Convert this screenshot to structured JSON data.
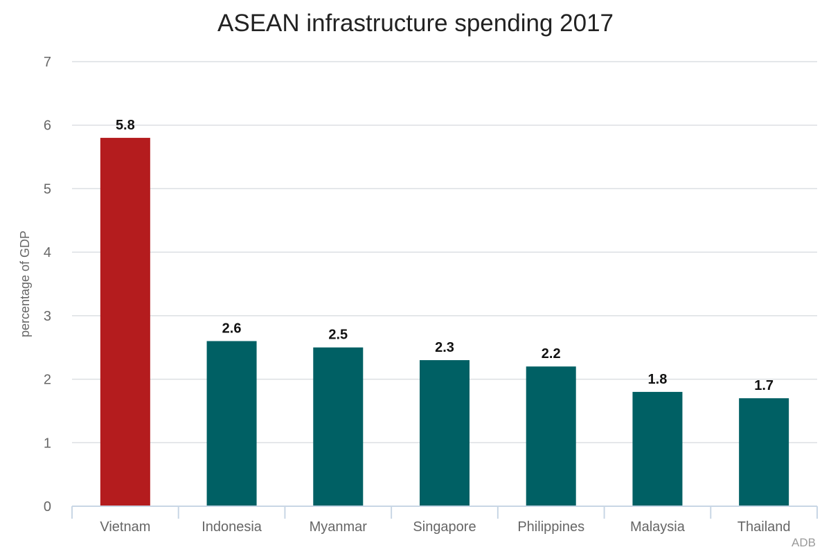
{
  "chart_data": {
    "type": "bar",
    "title": "ASEAN infrastructure spending 2017",
    "xlabel": "",
    "ylabel": "percentage of GDP",
    "categories": [
      "Vietnam",
      "Indonesia",
      "Myanmar",
      "Singapore",
      "Philippines",
      "Malaysia",
      "Thailand"
    ],
    "values": [
      5.8,
      2.6,
      2.5,
      2.3,
      2.2,
      1.8,
      1.7
    ],
    "value_labels": [
      "5.8",
      "2.6",
      "2.5",
      "2.3",
      "2.2",
      "1.8",
      "1.7"
    ],
    "ylim": [
      0,
      7
    ],
    "yticks": [
      0,
      1,
      2,
      3,
      4,
      5,
      6,
      7
    ],
    "grid": true,
    "legend": "none",
    "colors": {
      "highlight": "#b41c1e",
      "default": "#006064"
    },
    "highlight_category": "Vietnam",
    "source": "ADB"
  }
}
